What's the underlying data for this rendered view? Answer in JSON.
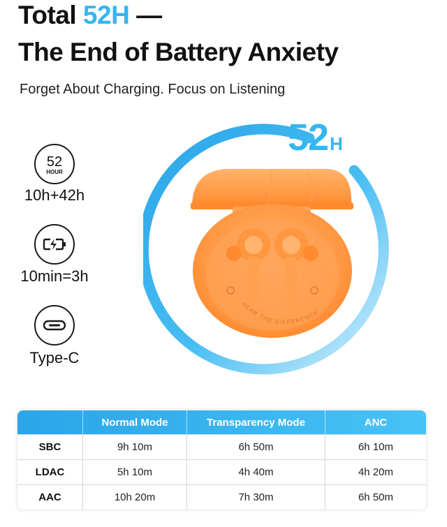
{
  "headline": {
    "prefix": "Total ",
    "highlight": "52H",
    "suffix": " —",
    "line2": "The End of Battery Anxiety"
  },
  "subtitle": "Forget About Charging. Focus on Listening",
  "features": {
    "hour_icon_number": "52",
    "hour_icon_unit": "HOUR",
    "hours_label": "10h+42h",
    "charge_label": "10min=3h",
    "port_label": "Type-C"
  },
  "ring": {
    "value": "52",
    "unit": "H",
    "ring_color": "#35b6ee",
    "ring_light_color": "#cdeefc"
  },
  "product": {
    "case_color": "#ff9a44",
    "case_text": "HEAR THE DIFFERENCE"
  },
  "table": {
    "headers": [
      "",
      "Normal Mode",
      "Transparency Mode",
      "ANC"
    ],
    "rows": [
      [
        "SBC",
        "9h 10m",
        "6h 50m",
        "6h 10m"
      ],
      [
        "LDAC",
        "5h 10m",
        "4h 40m",
        "4h 20m"
      ],
      [
        "AAC",
        "10h 20m",
        "7h 30m",
        "6h 50m"
      ]
    ],
    "header_color": "#35b6ee"
  }
}
